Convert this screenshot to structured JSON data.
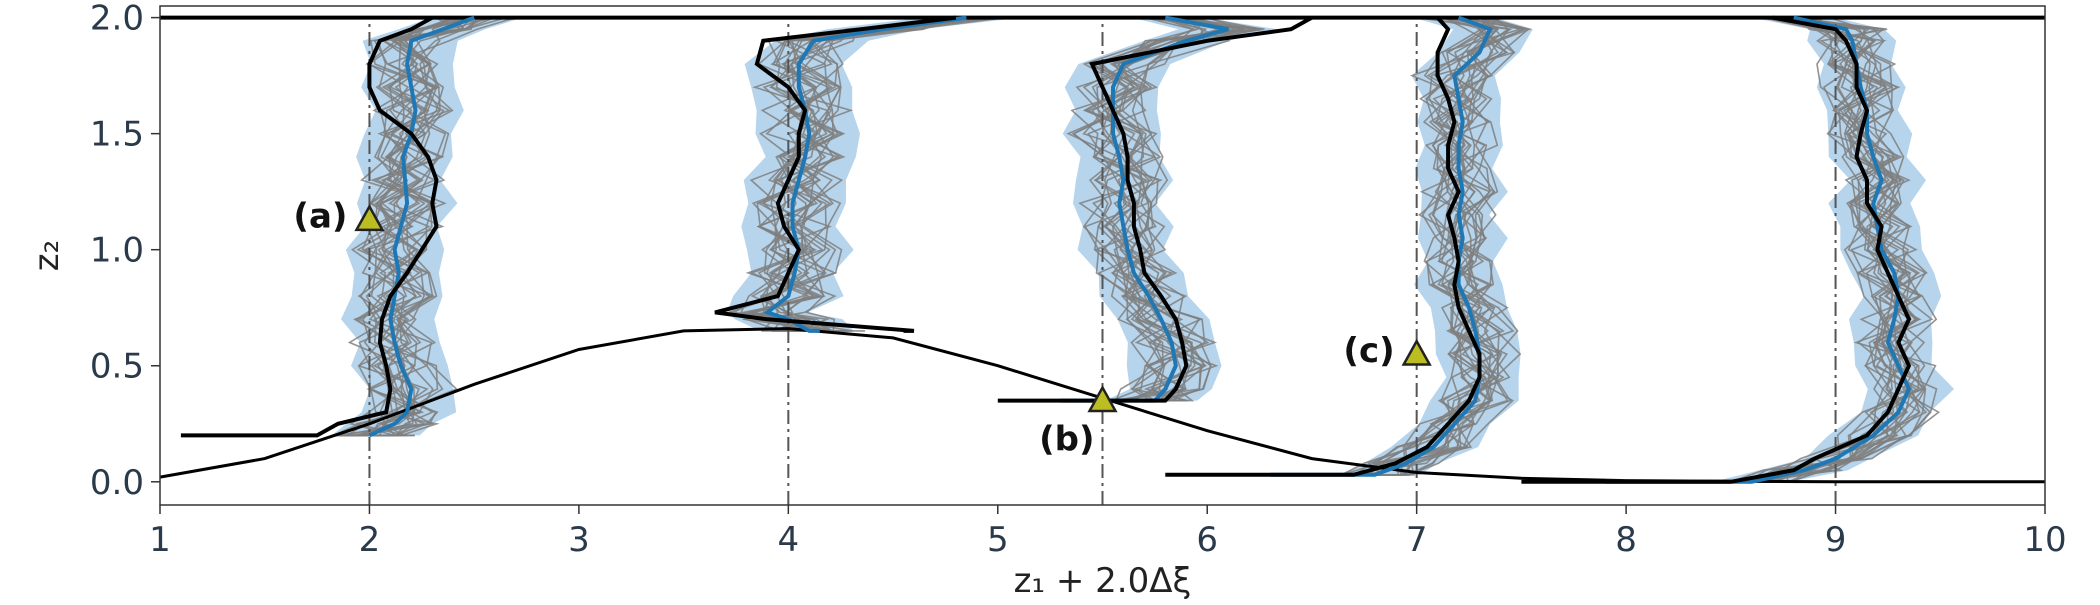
{
  "chart_data": {
    "type": "line",
    "xlabel": "z₁ + 2.0Δξ",
    "ylabel": "z₂",
    "xlim": [
      1,
      10
    ],
    "ylim": [
      -0.1,
      2.05
    ],
    "xticks": [
      1,
      2,
      3,
      4,
      5,
      6,
      7,
      8,
      9,
      10
    ],
    "xtick_labels": [
      "1",
      "2",
      "3",
      "4",
      "5",
      "6",
      "7",
      "8",
      "9",
      "10"
    ],
    "yticks": [
      0.0,
      0.5,
      1.0,
      1.5,
      2.0
    ],
    "ytick_labels": [
      "0.0",
      "0.5",
      "1.0",
      "1.5",
      "2.0"
    ],
    "grid": false,
    "colors": {
      "ensemble": "#7f7f7f",
      "mean": "#1f77b4",
      "band": "#9ec5e6",
      "truth": "#000000",
      "marker": "#bcbd22",
      "reference": "#555555"
    },
    "bump_curve": {
      "x": [
        1.0,
        1.5,
        2.0,
        2.5,
        3.0,
        3.5,
        4.0,
        4.5,
        5.0,
        5.5,
        6.0,
        6.5,
        7.0,
        7.5,
        8.0,
        8.5,
        9.0,
        10.0
      ],
      "y": [
        0.02,
        0.1,
        0.25,
        0.42,
        0.57,
        0.65,
        0.66,
        0.62,
        0.5,
        0.36,
        0.22,
        0.1,
        0.04,
        0.015,
        0.005,
        0.002,
        0.0,
        0.0
      ]
    },
    "top_boundary_y": 2.0,
    "profiles": [
      {
        "offset": 2.0,
        "z2": [
          0.2,
          0.2,
          0.25,
          0.3,
          0.4,
          0.5,
          0.6,
          0.7,
          0.8,
          0.9,
          1.0,
          1.1,
          1.2,
          1.3,
          1.4,
          1.5,
          1.6,
          1.7,
          1.8,
          1.9,
          1.95,
          2.0
        ],
        "truth": [
          -0.9,
          -0.25,
          -0.15,
          0.08,
          0.1,
          0.08,
          0.05,
          0.06,
          0.1,
          0.18,
          0.25,
          0.32,
          0.3,
          0.32,
          0.28,
          0.2,
          0.05,
          0.0,
          0.0,
          0.05,
          0.2,
          0.3
        ],
        "mean": [
          0.0,
          0.0,
          0.12,
          0.18,
          0.2,
          0.15,
          0.12,
          0.1,
          0.12,
          0.14,
          0.12,
          0.15,
          0.18,
          0.17,
          0.16,
          0.2,
          0.22,
          0.2,
          0.18,
          0.2,
          0.35,
          0.5
        ],
        "spread": 0.2
      },
      {
        "offset": 4.0,
        "z2": [
          0.65,
          0.65,
          0.7,
          0.73,
          0.8,
          0.9,
          1.0,
          1.1,
          1.2,
          1.3,
          1.4,
          1.5,
          1.6,
          1.7,
          1.8,
          1.9,
          1.95,
          2.0
        ],
        "truth": [
          0.55,
          0.6,
          -0.1,
          -0.35,
          -0.05,
          0.0,
          0.05,
          -0.02,
          -0.05,
          0.0,
          0.05,
          0.05,
          0.08,
          0.0,
          -0.15,
          -0.12,
          0.35,
          0.8
        ],
        "mean": [
          0.15,
          0.1,
          0.0,
          -0.1,
          0.0,
          0.03,
          0.05,
          0.02,
          0.02,
          0.05,
          0.08,
          0.1,
          0.08,
          0.05,
          0.05,
          0.12,
          0.45,
          0.85
        ],
        "spread": 0.22
      },
      {
        "offset": 5.5,
        "z2": [
          0.35,
          0.35,
          0.4,
          0.5,
          0.6,
          0.7,
          0.8,
          0.9,
          1.0,
          1.1,
          1.2,
          1.3,
          1.4,
          1.5,
          1.6,
          1.7,
          1.8,
          1.9,
          1.95,
          2.0
        ],
        "truth": [
          -0.5,
          0.3,
          0.35,
          0.4,
          0.38,
          0.35,
          0.28,
          0.2,
          0.18,
          0.15,
          0.15,
          0.12,
          0.12,
          0.1,
          0.05,
          0.0,
          -0.05,
          0.5,
          0.9,
          1.0
        ],
        "mean": [
          -0.2,
          0.25,
          0.3,
          0.35,
          0.33,
          0.28,
          0.22,
          0.15,
          0.12,
          0.1,
          0.08,
          0.1,
          0.08,
          0.05,
          0.05,
          0.05,
          0.1,
          0.4,
          0.6,
          0.3
        ],
        "spread": 0.2
      },
      {
        "offset": 7.0,
        "z2": [
          0.03,
          0.03,
          0.08,
          0.15,
          0.25,
          0.35,
          0.45,
          0.55,
          0.65,
          0.75,
          0.85,
          0.95,
          1.05,
          1.15,
          1.25,
          1.35,
          1.45,
          1.55,
          1.65,
          1.75,
          1.85,
          1.95,
          2.0
        ],
        "truth": [
          -1.2,
          -0.3,
          -0.1,
          0.05,
          0.15,
          0.25,
          0.3,
          0.3,
          0.25,
          0.2,
          0.18,
          0.2,
          0.18,
          0.15,
          0.2,
          0.15,
          0.15,
          0.18,
          0.15,
          0.1,
          0.1,
          0.15,
          0.1
        ],
        "mean": [
          -0.7,
          -0.2,
          -0.05,
          0.08,
          0.18,
          0.28,
          0.3,
          0.3,
          0.28,
          0.25,
          0.2,
          0.2,
          0.22,
          0.2,
          0.22,
          0.2,
          0.2,
          0.22,
          0.2,
          0.18,
          0.3,
          0.35,
          0.2
        ],
        "spread": 0.18
      },
      {
        "offset": 9.0,
        "z2": [
          0.0,
          0.0,
          0.05,
          0.1,
          0.2,
          0.3,
          0.4,
          0.5,
          0.6,
          0.7,
          0.8,
          0.9,
          1.0,
          1.1,
          1.2,
          1.3,
          1.4,
          1.5,
          1.6,
          1.7,
          1.8,
          1.9,
          1.95,
          2.0
        ],
        "truth": [
          -1.5,
          -0.5,
          -0.2,
          -0.1,
          0.15,
          0.25,
          0.3,
          0.35,
          0.3,
          0.35,
          0.3,
          0.25,
          0.2,
          0.22,
          0.15,
          0.15,
          0.1,
          0.12,
          0.15,
          0.1,
          0.1,
          0.05,
          0.0,
          -0.3
        ],
        "mean": [
          -1.1,
          -0.4,
          -0.15,
          0.0,
          0.18,
          0.3,
          0.35,
          0.3,
          0.25,
          0.28,
          0.3,
          0.28,
          0.22,
          0.2,
          0.18,
          0.22,
          0.18,
          0.15,
          0.15,
          0.12,
          0.1,
          0.08,
          0.05,
          -0.2
        ],
        "spread": 0.18
      }
    ],
    "markers": [
      {
        "label": "(a)",
        "x": 2.0,
        "y": 1.13,
        "label_side": "left"
      },
      {
        "label": "(b)",
        "x": 5.5,
        "y": 0.35,
        "label_side": "below-left"
      },
      {
        "label": "(c)",
        "x": 7.0,
        "y": 0.55,
        "label_side": "left"
      }
    ]
  }
}
